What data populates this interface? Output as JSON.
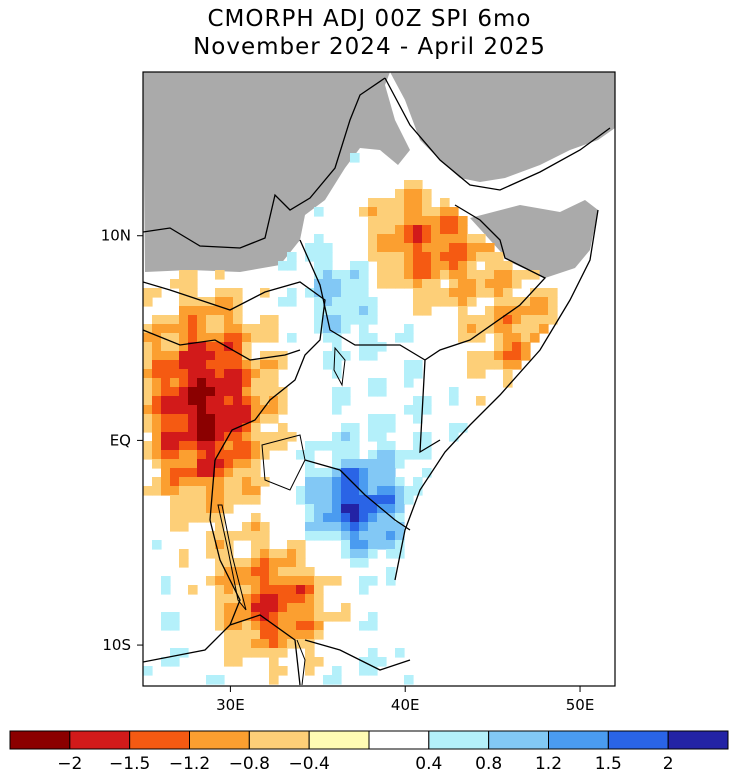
{
  "title": {
    "line1": "CMORPH ADJ 00Z SPI 6mo",
    "line2": "November 2024 - April 2025"
  },
  "axes": {
    "lat_ticks": [
      {
        "label": "10N",
        "value": 10
      },
      {
        "label": "EQ",
        "value": 0
      },
      {
        "label": "10S",
        "value": -10
      }
    ],
    "lon_ticks": [
      {
        "label": "30E",
        "value": 30
      },
      {
        "label": "40E",
        "value": 40
      },
      {
        "label": "50E",
        "value": 50
      }
    ],
    "lon_range": [
      25,
      52
    ],
    "lat_range": [
      -12,
      18
    ]
  },
  "legend": {
    "colors": [
      "#8b0000",
      "#d21a1a",
      "#f55a12",
      "#fb9f30",
      "#fdcf78",
      "#fffcb4",
      "#ffffff",
      "#b4f0fa",
      "#82c8f5",
      "#4a9bf0",
      "#2a64e6",
      "#2323a5"
    ],
    "labels": [
      "-2",
      "-1.5",
      "-1.2",
      "-0.8",
      "-0.4",
      "0.4",
      "0.8",
      "1.2",
      "1.5",
      "2"
    ]
  },
  "colors": {
    "no_data": "#aaaaaa",
    "border": "#000000"
  }
}
